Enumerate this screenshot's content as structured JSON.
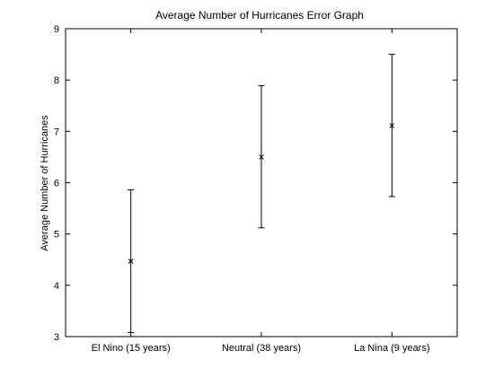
{
  "chart_data": {
    "type": "errorbar",
    "title": "Average Number of Hurricanes Error Graph",
    "xlabel": "",
    "ylabel": "Average Number of Hurricanes",
    "categories": [
      "El Nino (15 years)",
      "Neutral (38 years)",
      "La Nina (9 years)"
    ],
    "series": [
      {
        "values": [
          4.47,
          6.5,
          7.11
        ],
        "lower": [
          3.08,
          5.12,
          5.73
        ],
        "upper": [
          5.86,
          7.89,
          8.5
        ]
      }
    ],
    "ylim": [
      3,
      9
    ],
    "yticks": [
      3,
      4,
      5,
      6,
      7,
      8,
      9
    ],
    "grid": false,
    "legend": "none",
    "colors": {
      "line": "#000000",
      "background": "#ffffff"
    }
  }
}
